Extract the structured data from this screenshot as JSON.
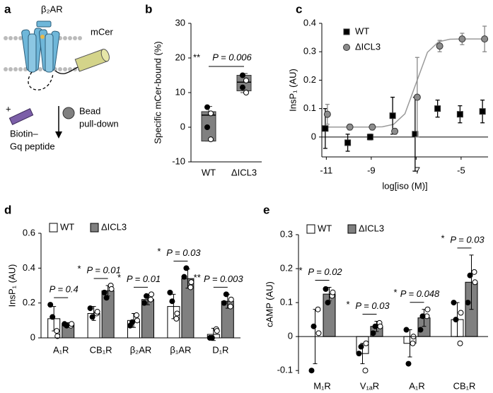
{
  "diagram": {
    "panel_label": "a",
    "receptor": "β₂AR",
    "fluorophore": "mCer",
    "plus": "+",
    "peptide": [
      "Biotin–",
      "Gq peptide"
    ],
    "bead": [
      "Bead",
      "pull-down"
    ]
  },
  "chart_data": [
    {
      "panel_label": "b",
      "type": "box",
      "ylabel": "Specific mCer-bound (%)",
      "categories": [
        "WT",
        "ΔICL3"
      ],
      "color": "#808080",
      "ylim": [
        -10,
        30
      ],
      "yticks": [
        -10,
        0,
        10,
        20,
        30
      ],
      "point_colors": [
        "#000000",
        "#ffffff",
        "#000000",
        "#ffffff"
      ],
      "boxes": [
        {
          "whisker_low": -4,
          "q1": -4,
          "median": 3.5,
          "q3": 4.5,
          "whisker_high": 6,
          "points": [
            5.8,
            4,
            0,
            -3.5
          ]
        },
        {
          "whisker_low": 10,
          "q1": 10.5,
          "median": 13,
          "q3": 15,
          "whisker_high": 15.5,
          "points": [
            15,
            13.5,
            11.5,
            10
          ]
        }
      ],
      "annotation": {
        "stars": "**",
        "text": "P = 0.006"
      }
    },
    {
      "panel_label": "c",
      "type": "line",
      "ylabel": "InsP₁ (AU)",
      "xlabel": "log[iso (M)]",
      "x": [
        -11,
        -10,
        -9,
        -8,
        -7,
        -6,
        -5,
        -4
      ],
      "xlim": [
        -11.2,
        -3.8
      ],
      "xticks": [
        -11,
        -9,
        -7,
        -5
      ],
      "ylim": [
        -0.07,
        0.4
      ],
      "yticks": [
        0,
        0.1,
        0.2,
        0.3,
        0.4
      ],
      "series": [
        {
          "name": "WT",
          "color": "#000000",
          "marker": "square",
          "values": [
            0.03,
            -0.02,
            0,
            0.075,
            0.01,
            0.1,
            0.08,
            0.09
          ],
          "errors": [
            0.07,
            0.03,
            0.01,
            0.065,
            0.13,
            0.03,
            0.03,
            0.04
          ]
        },
        {
          "name": "ΔICL3",
          "color": "#8c8c8c",
          "marker": "circle",
          "values": [
            0.08,
            0.035,
            0.035,
            0.02,
            0.14,
            0.32,
            0.345,
            0.345
          ],
          "errors": [
            0.035,
            0.01,
            0.01,
            0.01,
            0.14,
            0.02,
            0.02,
            0.045
          ]
        }
      ],
      "fit": {
        "color": "#9a9a9a",
        "x": [
          -11,
          -10.5,
          -10,
          -9.5,
          -9,
          -8.5,
          -8,
          -7.5,
          -7,
          -6.5,
          -6,
          -5.5,
          -5,
          -4.5,
          -4
        ],
        "values": [
          0.035,
          0.035,
          0.035,
          0.035,
          0.035,
          0.036,
          0.045,
          0.082,
          0.19,
          0.298,
          0.335,
          0.344,
          0.345,
          0.345,
          0.345
        ]
      }
    },
    {
      "panel_label": "d",
      "type": "bar",
      "ylabel": "InsP₁ (AU)",
      "categories": [
        "A₁R",
        "CB₁R",
        "β₂AR",
        "β₁AR",
        "D₁R"
      ],
      "ylim": [
        0,
        0.6
      ],
      "yticks": [
        0,
        0.2,
        0.4,
        0.6
      ],
      "point_colors": [
        "#000000",
        "#ffffff",
        "#000000",
        "#ffffff"
      ],
      "series": [
        {
          "name": "WT",
          "color": "#ffffff",
          "values": [
            0.11,
            0.14,
            0.1,
            0.18,
            0.02
          ],
          "errors": [
            0.07,
            0.04,
            0.04,
            0.07,
            0.035
          ],
          "points": [
            [
              0.19,
              0.04,
              0.12,
              0.01
            ],
            [
              0.17,
              0.14,
              0.12,
              0.15
            ],
            [
              0.07,
              0.13,
              0.09,
              0.1
            ],
            [
              0.26,
              0.11,
              0.21,
              0.14
            ],
            [
              0,
              0.05,
              0,
              0.04
            ]
          ]
        },
        {
          "name": "ΔICL3",
          "color": "#808080",
          "values": [
            0.075,
            0.27,
            0.22,
            0.34,
            0.21
          ],
          "errors": [
            0.012,
            0.03,
            0.03,
            0.055,
            0.04
          ],
          "points": [
            [
              0.08,
              0.07,
              0.07,
              0.08
            ],
            [
              0.26,
              0.3,
              0.23,
              0.28
            ],
            [
              0.2,
              0.22,
              0.24,
              0.25
            ],
            [
              0.35,
              0.29,
              0.4,
              0.32
            ],
            [
              0.2,
              0.18,
              0.25,
              0.22
            ]
          ]
        }
      ],
      "annotations": [
        {
          "text": "P = 0.4"
        },
        {
          "stars": "*",
          "text": "P = 0.01"
        },
        {
          "stars": "*",
          "text": "P = 0.01"
        },
        {
          "stars": "*",
          "text": "P = 0.03"
        },
        {
          "stars": "**",
          "text": "P = 0.003"
        }
      ]
    },
    {
      "panel_label": "e",
      "type": "bar",
      "ylabel": "cAMP (AU)",
      "categories": [
        "M₁R",
        "V₁ₐR",
        "A₁R",
        "CB₁R"
      ],
      "ylim": [
        -0.11,
        0.3
      ],
      "yticks": [
        -0.1,
        0,
        0.1,
        0.2,
        0.3
      ],
      "point_colors": [
        "#000000",
        "#ffffff",
        "#000000",
        "#ffffff"
      ],
      "series": [
        {
          "name": "WT",
          "color": "#ffffff",
          "values": [
            0,
            -0.05,
            -0.02,
            0.05
          ],
          "errors": [
            0.08,
            0.03,
            0.04,
            0.05
          ],
          "points": [
            [
              -0.1,
              0.08,
              0.03,
              0.01
            ],
            [
              -0.05,
              -0.1,
              -0.03,
              -0.02
            ],
            [
              0.02,
              -0.02,
              -0.08,
              0
            ],
            [
              0.1,
              -0.02,
              0.05,
              0.07
            ]
          ]
        },
        {
          "name": "ΔICL3",
          "color": "#808080",
          "values": [
            0.125,
            0.03,
            0.055,
            0.16
          ],
          "errors": [
            0.02,
            0.015,
            0.025,
            0.08
          ],
          "points": [
            [
              0.14,
              0.12,
              0.1,
              0.13
            ],
            [
              0.01,
              0.04,
              0.03,
              0.03
            ],
            [
              0.02,
              0.06,
              0.06,
              0.08
            ],
            [
              0.1,
              0.19,
              0.18,
              0.16
            ]
          ]
        }
      ],
      "annotations": [
        {
          "stars": "*",
          "text": "P = 0.02"
        },
        {
          "stars": "*",
          "text": "P = 0.03"
        },
        {
          "stars": "*",
          "text": "P = 0.048"
        },
        {
          "stars": "*",
          "text": "P = 0.03"
        }
      ]
    }
  ]
}
